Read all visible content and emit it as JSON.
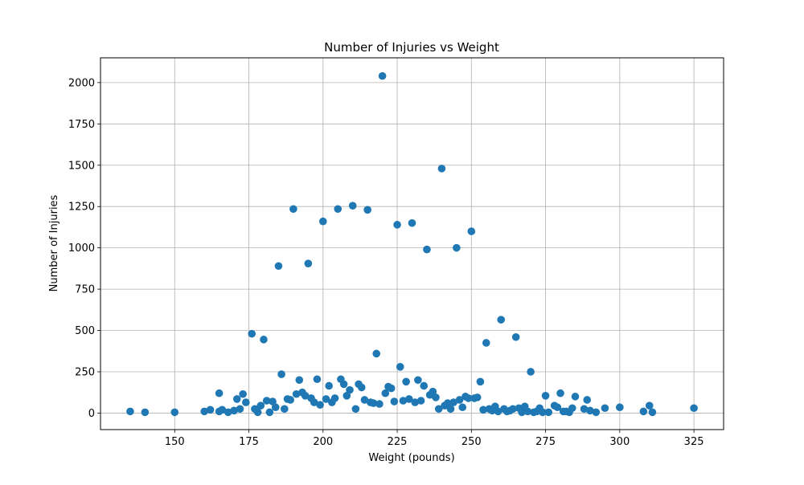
{
  "chart_data": {
    "type": "scatter",
    "title": "Number of Injuries vs Weight",
    "xlabel": "Weight (pounds)",
    "ylabel": "Number of Injuries",
    "xlim": [
      125,
      335
    ],
    "ylim": [
      -100,
      2150
    ],
    "xticks": [
      150,
      175,
      200,
      225,
      250,
      275,
      300,
      325
    ],
    "yticks": [
      0,
      250,
      500,
      750,
      1000,
      1250,
      1500,
      1750,
      2000
    ],
    "grid": true,
    "marker_color": "#1f77b4",
    "series": [
      {
        "points": [
          [
            135,
            10
          ],
          [
            140,
            5
          ],
          [
            150,
            5
          ],
          [
            160,
            10
          ],
          [
            162,
            20
          ],
          [
            165,
            10
          ],
          [
            165,
            120
          ],
          [
            166,
            20
          ],
          [
            168,
            5
          ],
          [
            170,
            15
          ],
          [
            171,
            85
          ],
          [
            172,
            25
          ],
          [
            173,
            115
          ],
          [
            174,
            65
          ],
          [
            176,
            480
          ],
          [
            177,
            25
          ],
          [
            178,
            5
          ],
          [
            179,
            45
          ],
          [
            180,
            445
          ],
          [
            181,
            75
          ],
          [
            182,
            5
          ],
          [
            183,
            70
          ],
          [
            184,
            35
          ],
          [
            185,
            890
          ],
          [
            186,
            235
          ],
          [
            187,
            25
          ],
          [
            188,
            85
          ],
          [
            189,
            80
          ],
          [
            190,
            1235
          ],
          [
            191,
            115
          ],
          [
            192,
            200
          ],
          [
            193,
            125
          ],
          [
            194,
            105
          ],
          [
            195,
            905
          ],
          [
            196,
            90
          ],
          [
            197,
            65
          ],
          [
            198,
            205
          ],
          [
            199,
            50
          ],
          [
            200,
            1160
          ],
          [
            201,
            85
          ],
          [
            202,
            165
          ],
          [
            203,
            65
          ],
          [
            204,
            90
          ],
          [
            205,
            1235
          ],
          [
            206,
            205
          ],
          [
            207,
            175
          ],
          [
            208,
            105
          ],
          [
            209,
            140
          ],
          [
            210,
            1255
          ],
          [
            211,
            25
          ],
          [
            212,
            175
          ],
          [
            213,
            155
          ],
          [
            214,
            80
          ],
          [
            215,
            1230
          ],
          [
            216,
            65
          ],
          [
            217,
            60
          ],
          [
            218,
            360
          ],
          [
            219,
            55
          ],
          [
            220,
            2040
          ],
          [
            221,
            120
          ],
          [
            222,
            160
          ],
          [
            223,
            150
          ],
          [
            224,
            70
          ],
          [
            225,
            1140
          ],
          [
            226,
            280
          ],
          [
            227,
            75
          ],
          [
            228,
            190
          ],
          [
            229,
            85
          ],
          [
            230,
            1150
          ],
          [
            231,
            65
          ],
          [
            232,
            200
          ],
          [
            233,
            75
          ],
          [
            234,
            165
          ],
          [
            235,
            990
          ],
          [
            236,
            110
          ],
          [
            237,
            130
          ],
          [
            238,
            95
          ],
          [
            239,
            25
          ],
          [
            240,
            1480
          ],
          [
            241,
            45
          ],
          [
            242,
            60
          ],
          [
            243,
            25
          ],
          [
            244,
            65
          ],
          [
            245,
            1000
          ],
          [
            246,
            80
          ],
          [
            247,
            35
          ],
          [
            248,
            100
          ],
          [
            249,
            90
          ],
          [
            250,
            1100
          ],
          [
            251,
            90
          ],
          [
            252,
            95
          ],
          [
            253,
            190
          ],
          [
            254,
            20
          ],
          [
            255,
            425
          ],
          [
            256,
            25
          ],
          [
            257,
            15
          ],
          [
            258,
            40
          ],
          [
            259,
            10
          ],
          [
            260,
            565
          ],
          [
            261,
            25
          ],
          [
            262,
            10
          ],
          [
            263,
            15
          ],
          [
            264,
            25
          ],
          [
            265,
            460
          ],
          [
            266,
            30
          ],
          [
            267,
            5
          ],
          [
            268,
            40
          ],
          [
            269,
            10
          ],
          [
            270,
            250
          ],
          [
            271,
            5
          ],
          [
            272,
            10
          ],
          [
            273,
            30
          ],
          [
            274,
            5
          ],
          [
            275,
            105
          ],
          [
            276,
            5
          ],
          [
            278,
            45
          ],
          [
            279,
            35
          ],
          [
            280,
            120
          ],
          [
            281,
            10
          ],
          [
            282,
            10
          ],
          [
            283,
            5
          ],
          [
            284,
            30
          ],
          [
            285,
            100
          ],
          [
            288,
            25
          ],
          [
            289,
            80
          ],
          [
            290,
            15
          ],
          [
            292,
            5
          ],
          [
            295,
            30
          ],
          [
            300,
            35
          ],
          [
            308,
            10
          ],
          [
            310,
            45
          ],
          [
            311,
            5
          ],
          [
            325,
            30
          ]
        ]
      }
    ]
  }
}
